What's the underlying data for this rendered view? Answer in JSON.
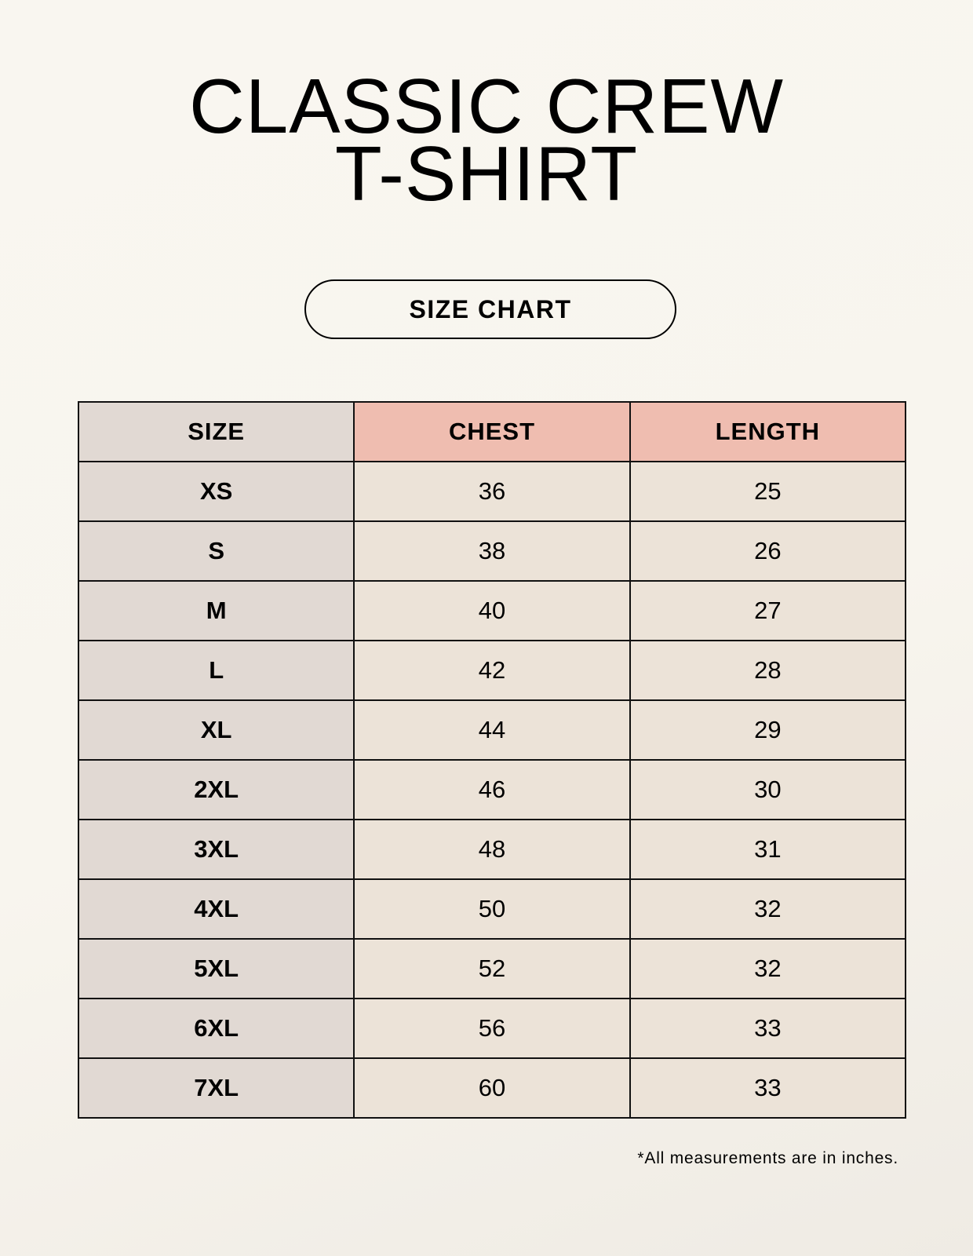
{
  "title": {
    "line1": "CLASSIC CREW",
    "line2": "T-SHIRT"
  },
  "badge": "SIZE CHART",
  "table": {
    "headers": [
      "SIZE",
      "CHEST",
      "LENGTH"
    ],
    "rows": [
      [
        "XS",
        "36",
        "25"
      ],
      [
        "S",
        "38",
        "26"
      ],
      [
        "M",
        "40",
        "27"
      ],
      [
        "L",
        "42",
        "28"
      ],
      [
        "XL",
        "44",
        "29"
      ],
      [
        "2XL",
        "46",
        "30"
      ],
      [
        "3XL",
        "48",
        "31"
      ],
      [
        "4XL",
        "50",
        "32"
      ],
      [
        "5XL",
        "52",
        "32"
      ],
      [
        "6XL",
        "56",
        "33"
      ],
      [
        "7XL",
        "60",
        "33"
      ]
    ]
  },
  "footnote": "*All measurements are in inches.",
  "colors": {
    "size_column": "#e1d9d3",
    "header_accent": "#efbdb0",
    "value_cells": "#ece3d8"
  }
}
